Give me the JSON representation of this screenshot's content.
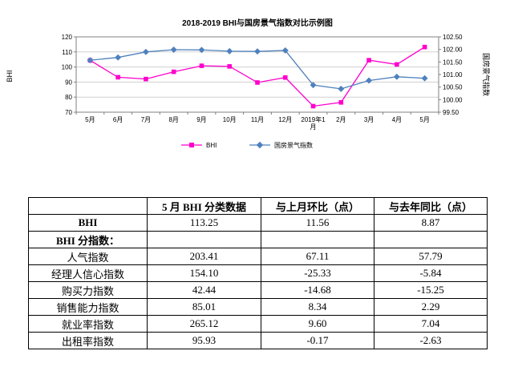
{
  "chart_data": {
    "type": "line",
    "title": "2018-2019 BHI与国房景气指数对比示例图",
    "xlabel": "",
    "ylabel_left": "BHI",
    "ylabel_right": "国房景气指数",
    "categories": [
      "5月",
      "6月",
      "7月",
      "8月",
      "9月",
      "10月",
      "11月",
      "12月",
      "2019年1月",
      "2月",
      "3月",
      "4月",
      "5月"
    ],
    "series": [
      {
        "name": "BHI",
        "axis": "left",
        "color": "#FF00CC",
        "marker": "square",
        "values": [
          104.38,
          93.2,
          92.0,
          96.8,
          100.8,
          100.4,
          89.7,
          93.0,
          74.0,
          76.5,
          104.5,
          101.69,
          113.25
        ]
      },
      {
        "name": "国房景气指数",
        "axis": "right",
        "color": "#4F81BD",
        "marker": "diamond",
        "values": [
          101.57,
          101.68,
          101.9,
          101.99,
          101.98,
          101.93,
          101.92,
          101.96,
          100.58,
          100.43,
          100.76,
          100.91,
          100.85
        ]
      }
    ],
    "left_axis": {
      "min": 70,
      "max": 120,
      "step": 10,
      "ticks": [
        "120",
        "110",
        "100",
        "90",
        "80",
        "70"
      ]
    },
    "right_axis": {
      "min": 99.5,
      "max": 102.5,
      "step": 0.5,
      "ticks": [
        "102.50",
        "102.00",
        "101.50",
        "101.00",
        "100.50",
        "100.00",
        "99.50"
      ]
    },
    "legend_position": "bottom",
    "grid": true
  },
  "table": {
    "headers": [
      "",
      "5 月 BHI 分类数据",
      "与上月环比（点）",
      "与去年同比（点）"
    ],
    "rows": [
      {
        "label": "BHI",
        "emphasis": true,
        "values": [
          "113.25",
          "11.56",
          "8.87"
        ]
      },
      {
        "label": "BHI 分指数：",
        "emphasis": true,
        "values": [
          "",
          "",
          ""
        ]
      },
      {
        "label": "人气指数",
        "emphasis": false,
        "values": [
          "203.41",
          "67.11",
          "57.79"
        ]
      },
      {
        "label": "经理人信心指数",
        "emphasis": false,
        "values": [
          "154.10",
          "-25.33",
          "-5.84"
        ]
      },
      {
        "label": "购买力指数",
        "emphasis": false,
        "values": [
          "42.44",
          "-14.68",
          "-15.25"
        ]
      },
      {
        "label": "销售能力指数",
        "emphasis": false,
        "values": [
          "85.01",
          "8.34",
          "2.29"
        ]
      },
      {
        "label": "就业率指数",
        "emphasis": false,
        "values": [
          "265.12",
          "9.60",
          "7.04"
        ]
      },
      {
        "label": "出租率指数",
        "emphasis": false,
        "values": [
          "95.93",
          "-0.17",
          "-2.63"
        ]
      }
    ]
  }
}
